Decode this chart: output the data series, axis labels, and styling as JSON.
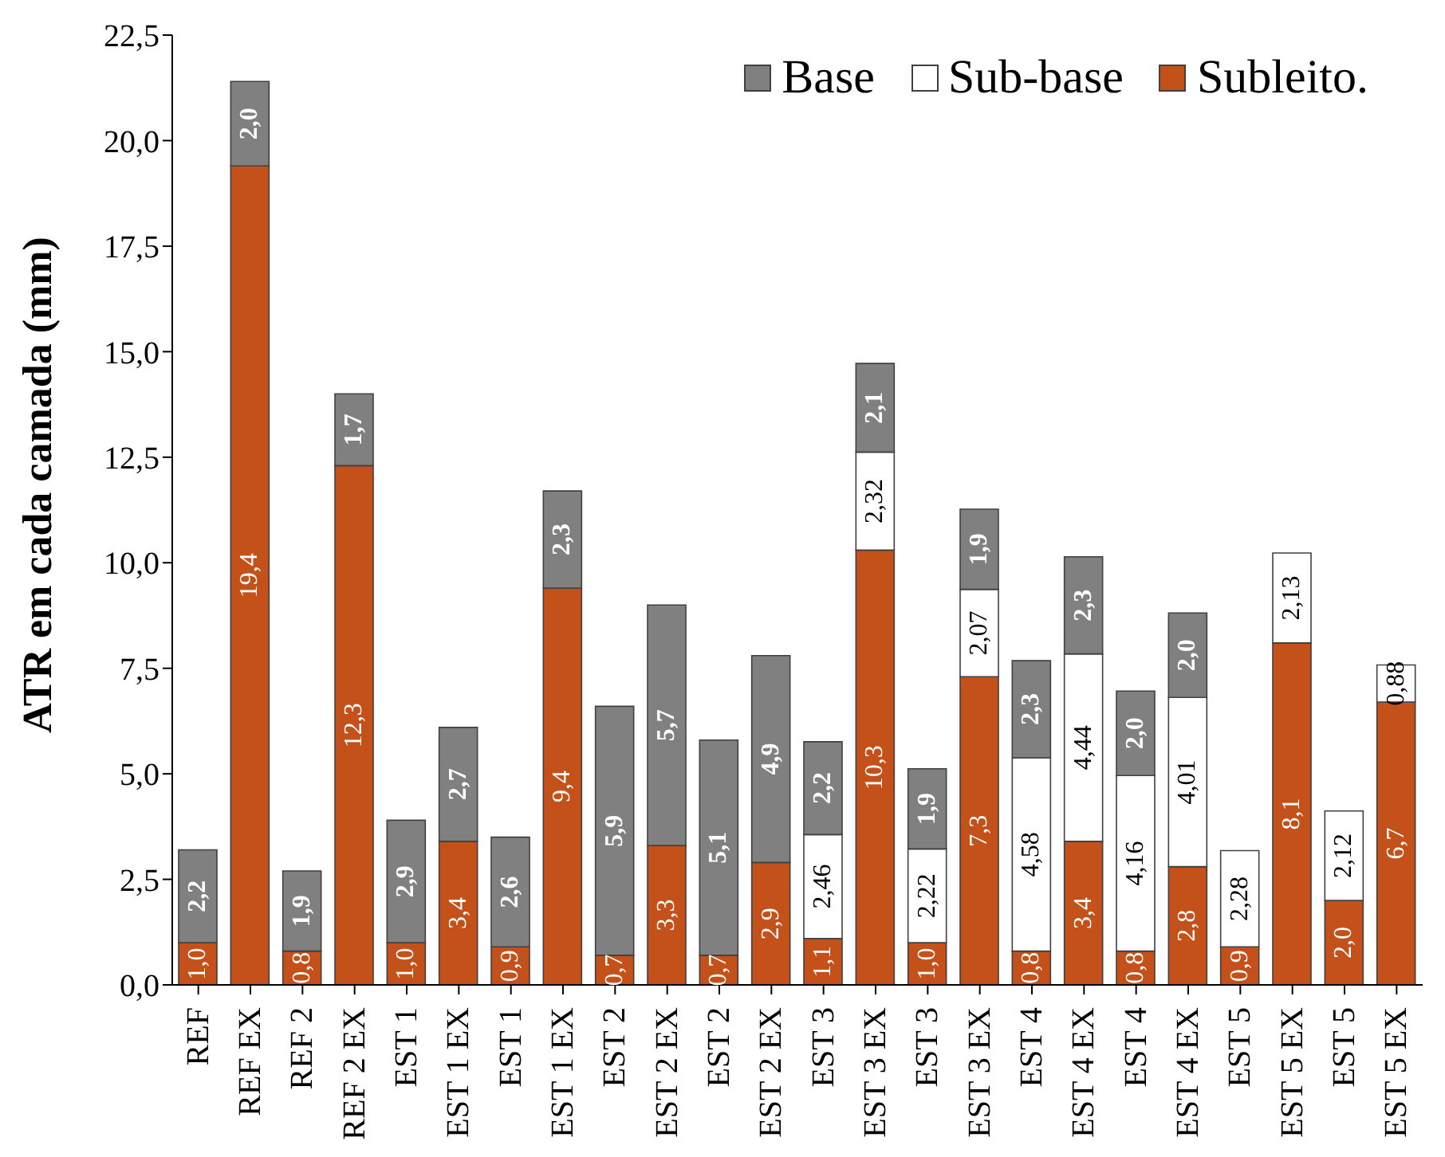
{
  "chart_data": {
    "type": "bar",
    "stacked": true,
    "ylabel": "ATR em cada camada (mm)",
    "categories": [
      "REF",
      "REF EX",
      "REF 2",
      "REF 2 EX",
      "EST 1",
      "EST 1 EX",
      "EST 1",
      "EST 1 EX",
      "EST 2",
      "EST 2 EX",
      "EST 2",
      "EST 2 EX",
      "EST 3",
      "EST 3 EX",
      "EST 3",
      "EST 3 EX",
      "EST 4",
      "EST 4 EX",
      "EST 4",
      "EST 4 EX",
      "EST 5",
      "EST 5 EX",
      "EST 5",
      "EST 5 EX"
    ],
    "series": [
      {
        "name": "Subleito.",
        "color": "#c4501a",
        "values": [
          1.0,
          19.4,
          0.8,
          12.3,
          1.0,
          3.4,
          0.9,
          9.4,
          0.7,
          3.3,
          0.7,
          2.9,
          1.1,
          10.3,
          1.0,
          7.3,
          0.8,
          3.4,
          0.8,
          2.8,
          0.9,
          8.1,
          2.0,
          6.7
        ],
        "value_labels": [
          "1,0",
          "19,4",
          "0,8",
          "12,3",
          "1,0",
          "3,4",
          "0,9",
          "9,4",
          "0,7",
          "3,3",
          "0,7",
          "2,9",
          "1,1",
          "10,3",
          "1,0",
          "7,3",
          "0,8",
          "3,4",
          "0,8",
          "2,8",
          "0,9",
          "8,1",
          "2,0",
          "6,7"
        ]
      },
      {
        "name": "Sub-base",
        "color": "#ffffff",
        "values": [
          null,
          null,
          null,
          null,
          null,
          null,
          null,
          null,
          null,
          null,
          null,
          null,
          2.46,
          2.32,
          2.22,
          2.07,
          4.58,
          4.44,
          4.16,
          4.01,
          2.28,
          2.13,
          2.12,
          0.88
        ],
        "value_labels": [
          null,
          null,
          null,
          null,
          null,
          null,
          null,
          null,
          null,
          null,
          null,
          null,
          "2,46",
          "2,32",
          "2,22",
          "2,07",
          "4,58",
          "4,44",
          "4,16",
          "4,01",
          "2,28",
          "2,13",
          "2,12",
          "0,88"
        ]
      },
      {
        "name": "Base",
        "color": "#808080",
        "values": [
          2.2,
          2.0,
          1.9,
          1.7,
          2.9,
          2.7,
          2.6,
          2.3,
          5.9,
          5.7,
          5.1,
          4.9,
          2.2,
          2.1,
          1.9,
          1.9,
          2.3,
          2.3,
          2.0,
          2.0,
          null,
          null,
          null,
          null
        ],
        "value_labels": [
          "2,2",
          "2,0",
          "1,9",
          "1,7",
          "2,9",
          "2,7",
          "2,6",
          "2,3",
          "5,9",
          "5,7",
          "5,1",
          "4,9",
          "2,2",
          "2,1",
          "1,9",
          "1,9",
          "2,3",
          "2,3",
          "2,0",
          "2,0",
          null,
          null,
          null,
          null
        ]
      }
    ],
    "ylim": [
      0,
      22.5
    ],
    "yticks": [
      {
        "value": 0,
        "label": "0,0"
      },
      {
        "value": 2.5,
        "label": "2,5"
      },
      {
        "value": 5,
        "label": "5,0"
      },
      {
        "value": 7.5,
        "label": "7,5"
      },
      {
        "value": 10,
        "label": "10,0"
      },
      {
        "value": 12.5,
        "label": "12,5"
      },
      {
        "value": 15,
        "label": "15,0"
      },
      {
        "value": 17.5,
        "label": "17,5"
      },
      {
        "value": 20,
        "label": "20,0"
      },
      {
        "value": 22.5,
        "label": "22,5"
      }
    ],
    "grid": false,
    "legend": "top right"
  }
}
